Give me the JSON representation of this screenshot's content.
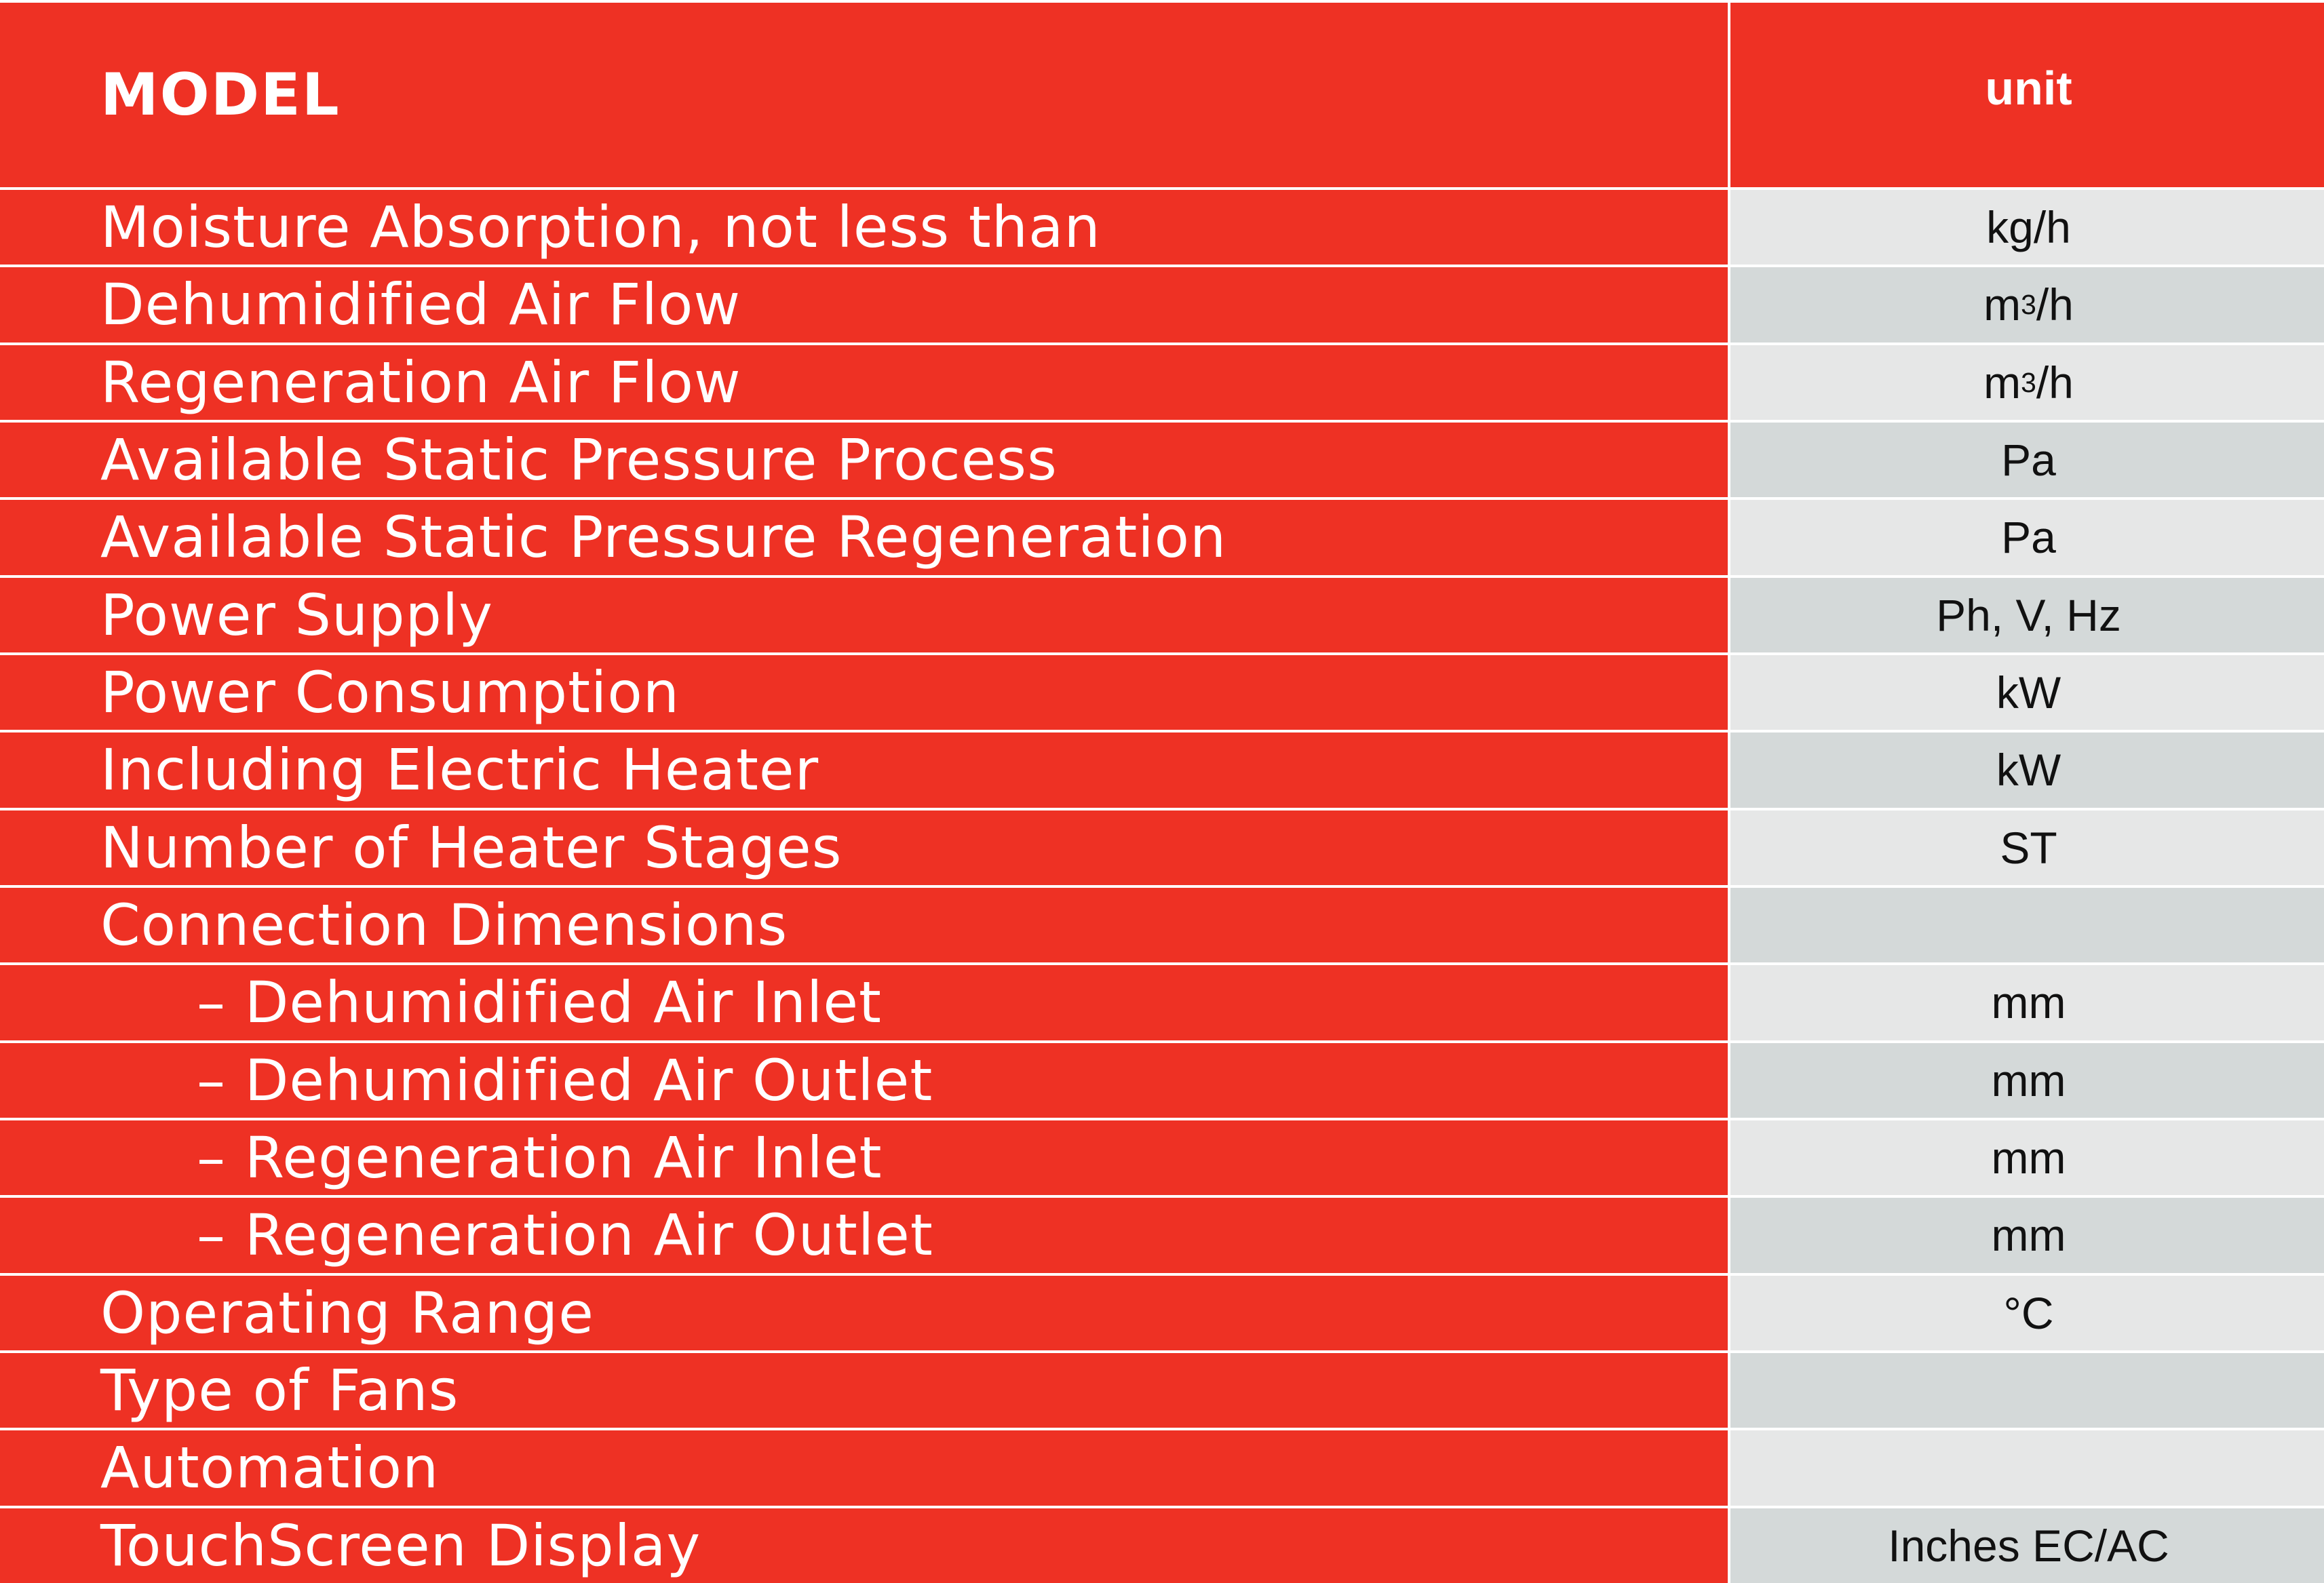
{
  "header": {
    "model_label": "MODEL",
    "unit_label": "unit"
  },
  "rows": [
    {
      "label": "Moisture Absorption, not less than",
      "unit": "kg/h"
    },
    {
      "label": "Dehumidified Air Flow",
      "unit_base": "m",
      "unit_sup": "3",
      "unit_tail": "/h"
    },
    {
      "label": "Regeneration Air Flow",
      "unit_base": "m",
      "unit_sup": "3",
      "unit_tail": "/h"
    },
    {
      "label": "Available Static Pressure Process",
      "unit": "Pa"
    },
    {
      "label": "Available Static Pressure Regeneration",
      "unit": "Pa"
    },
    {
      "label": "Power Supply",
      "unit": "Ph, V, Hz"
    },
    {
      "label": "Power Consumption",
      "unit": "kW"
    },
    {
      "label": "Including Electric Heater",
      "unit": "kW"
    },
    {
      "label": "Number of Heater Stages",
      "unit": "ST"
    },
    {
      "label": "Connection Dimensions",
      "unit": ""
    },
    {
      "label": "– Dehumidified Air Inlet",
      "unit": "mm"
    },
    {
      "label": "– Dehumidified Air Outlet",
      "unit": "mm"
    },
    {
      "label": "– Regeneration Air Inlet",
      "unit": "mm"
    },
    {
      "label": "– Regeneration Air Outlet",
      "unit": "mm"
    },
    {
      "label": "Operating Range",
      "unit": "°C"
    },
    {
      "label": "Type of Fans",
      "unit": ""
    },
    {
      "label": "Automation",
      "unit": ""
    },
    {
      "label": "TouchScreen Display",
      "unit": "Inches EC/AC"
    }
  ],
  "colors": {
    "red": "#ee3124",
    "grey_light": "#e6e7e7",
    "grey_dark": "#d4d9d9"
  }
}
